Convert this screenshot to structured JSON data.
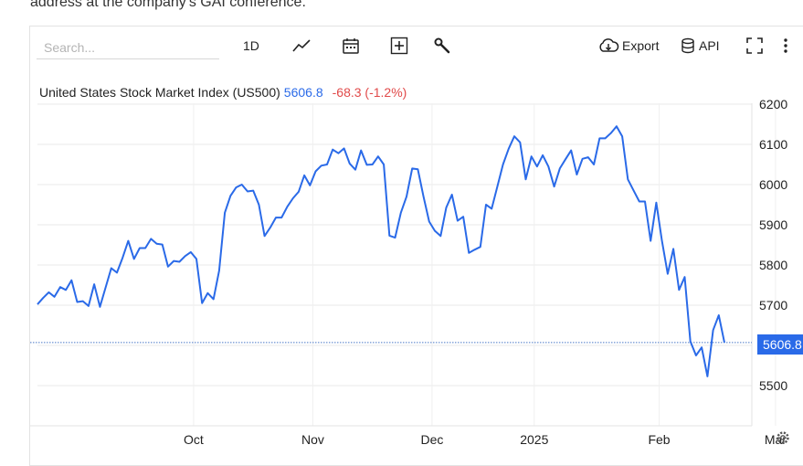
{
  "intro_text": "address at the company's GAI conference.",
  "toolbar": {
    "search_placeholder": "Search...",
    "interval": "1D",
    "export_label": "Export",
    "api_label": "API",
    "icons": [
      "line-chart-icon",
      "calendar-icon",
      "add-indicator-icon",
      "wrench-icon",
      "cloud-download-icon",
      "database-icon",
      "fullscreen-icon",
      "more-vertical-icon"
    ]
  },
  "chart_header": {
    "symbol": "United States Stock Market Index (US500)",
    "last": "5606.8",
    "change": "-68.3 (-1.2%)"
  },
  "colors": {
    "line": "#2a6ae8",
    "change_negative": "#e14a4a",
    "grid": "#e9e9e9"
  },
  "price_tag": "5606.8",
  "chart_data": {
    "type": "line",
    "title": "United States Stock Market Index (US500)",
    "ylim": [
      5470,
      6230
    ],
    "yticks": [
      "6200",
      "6100",
      "6000",
      "5900",
      "5800",
      "5700",
      "5600",
      "5500"
    ],
    "ytick_values": [
      6200,
      6100,
      6000,
      5900,
      5800,
      5700,
      5600,
      5500
    ],
    "xticks": [
      "Oct",
      "Nov",
      "Dec",
      "2025",
      "Feb",
      "Mar"
    ],
    "xtick_index": [
      27.5,
      48.5,
      69.5,
      87.5,
      109.5,
      130
    ],
    "grid": true,
    "series": [
      {
        "values": [
          5702,
          5718,
          5732,
          5721,
          5745,
          5738,
          5762,
          5708,
          5710,
          5698,
          5752,
          5696,
          5744,
          5792,
          5781,
          5818,
          5860,
          5815,
          5842,
          5842,
          5865,
          5853,
          5851,
          5796,
          5810,
          5808,
          5822,
          5832,
          5815,
          5705,
          5730,
          5715,
          5786,
          5930,
          5972,
          5993,
          6000,
          5983,
          5985,
          5950,
          5872,
          5893,
          5918,
          5918,
          5945,
          5966,
          5982,
          6023,
          5998,
          6033,
          6047,
          6050,
          6087,
          6078,
          6090,
          6052,
          6037,
          6085,
          6049,
          6050,
          6070,
          6050,
          5873,
          5868,
          5930,
          5970,
          6040,
          6038,
          5970,
          5908,
          5885,
          5872,
          5943,
          5975,
          5910,
          5920,
          5830,
          5838,
          5845,
          5950,
          5940,
          5995,
          6050,
          6089,
          6120,
          6105,
          6013,
          6070,
          6045,
          6073,
          6045,
          5995,
          6040,
          6063,
          6085,
          6025,
          6064,
          6068,
          6050,
          6115,
          6115,
          6128,
          6145,
          6120,
          6013,
          5985,
          5958,
          5958,
          5860,
          5955,
          5860,
          5778,
          5840,
          5738,
          5770,
          5610,
          5575,
          5595,
          5523,
          5638,
          5675,
          5607
        ]
      }
    ]
  }
}
